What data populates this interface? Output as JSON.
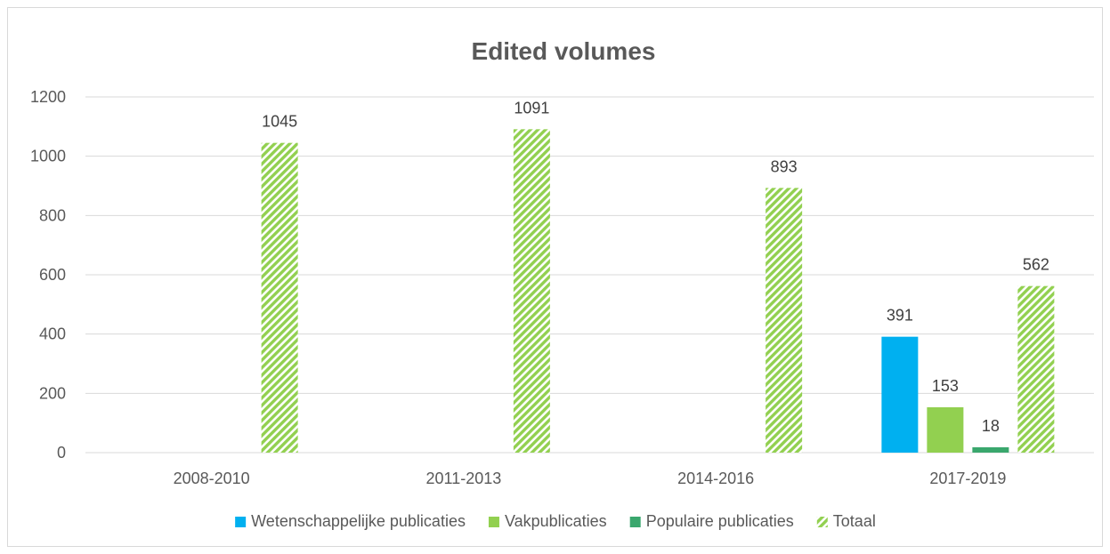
{
  "chart_data": {
    "type": "bar",
    "title": "Edited volumes",
    "xlabel": "",
    "ylabel": "",
    "ylim": [
      0,
      1200
    ],
    "yticks": [
      0,
      200,
      400,
      600,
      800,
      1000,
      1200
    ],
    "grid": true,
    "legend_position": "bottom",
    "categories": [
      "2008-2010",
      "2011-2013",
      "2014-2016",
      "2017-2019"
    ],
    "series": [
      {
        "name": "Wetenschappelijke publicaties",
        "color": "#00b0f0",
        "pattern": "solid",
        "values": [
          null,
          null,
          null,
          391
        ]
      },
      {
        "name": "Vakpublicaties",
        "color": "#92d050",
        "pattern": "solid",
        "values": [
          null,
          null,
          null,
          153
        ]
      },
      {
        "name": "Populaire publicaties",
        "color": "#3aa76d",
        "pattern": "solid",
        "values": [
          null,
          null,
          null,
          18
        ]
      },
      {
        "name": "Totaal",
        "color": "#92d050",
        "pattern": "diagonal-stripes",
        "values": [
          1045,
          1091,
          893,
          562
        ]
      }
    ]
  }
}
